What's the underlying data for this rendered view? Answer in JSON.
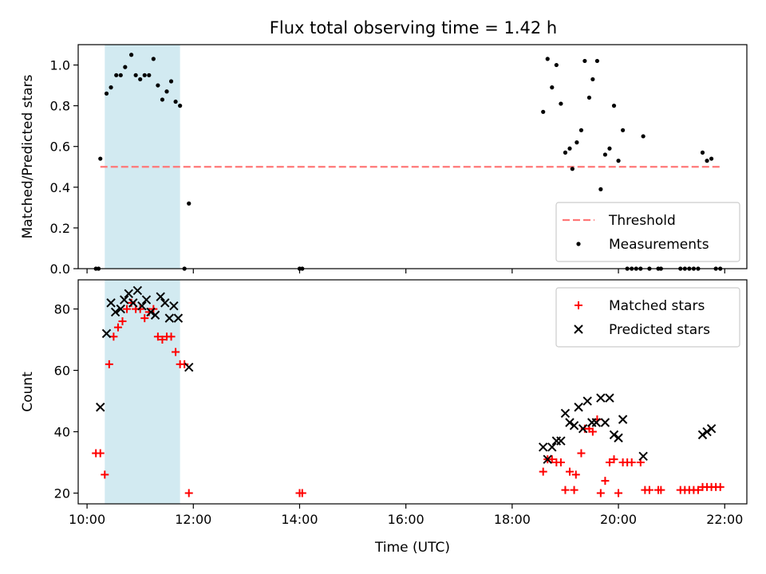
{
  "figure_title": "Flux total observing time = 1.42 h",
  "chart_data": [
    {
      "type": "scatter",
      "ylabel": "Matched/Predicted stars",
      "xlabel": "",
      "xlim": [
        "09:50",
        "22:25"
      ],
      "ylim": [
        0,
        1.1
      ],
      "yticks": [
        0.0,
        0.2,
        0.4,
        0.6,
        0.8,
        1.0
      ],
      "ytick_labels": [
        "0.0",
        "0.2",
        "0.4",
        "0.6",
        "0.8",
        "1.0"
      ],
      "shaded_interval": [
        "10:20",
        "11:45"
      ],
      "shade_color": "#add8e6",
      "threshold": {
        "name": "Threshold",
        "value": 0.5,
        "x_start": "10:15",
        "x_end": "21:55",
        "color": "#ff7777",
        "style": "dashed"
      },
      "series": [
        {
          "name": "Measurements",
          "marker": "dot",
          "color": "#000000",
          "points": [
            [
              "10:10",
              0.0
            ],
            [
              "10:13",
              0.0
            ],
            [
              "10:15",
              0.54
            ],
            [
              "10:22",
              0.86
            ],
            [
              "10:27",
              0.89
            ],
            [
              "10:33",
              0.95
            ],
            [
              "10:38",
              0.95
            ],
            [
              "10:43",
              0.99
            ],
            [
              "10:50",
              1.05
            ],
            [
              "10:55",
              0.95
            ],
            [
              "11:00",
              0.93
            ],
            [
              "11:05",
              0.95
            ],
            [
              "11:10",
              0.95
            ],
            [
              "11:15",
              1.03
            ],
            [
              "11:20",
              0.9
            ],
            [
              "11:25",
              0.83
            ],
            [
              "11:30",
              0.87
            ],
            [
              "11:35",
              0.92
            ],
            [
              "11:40",
              0.82
            ],
            [
              "11:45",
              0.8
            ],
            [
              "11:50",
              0.0
            ],
            [
              "11:55",
              0.32
            ],
            [
              "14:00",
              0.0
            ],
            [
              "14:03",
              0.0
            ],
            [
              "18:35",
              0.77
            ],
            [
              "18:40",
              1.03
            ],
            [
              "18:45",
              0.89
            ],
            [
              "18:50",
              1.0
            ],
            [
              "18:55",
              0.81
            ],
            [
              "19:00",
              0.57
            ],
            [
              "19:05",
              0.59
            ],
            [
              "19:08",
              0.49
            ],
            [
              "19:13",
              0.62
            ],
            [
              "19:18",
              0.68
            ],
            [
              "19:22",
              1.02
            ],
            [
              "19:27",
              0.84
            ],
            [
              "19:31",
              0.93
            ],
            [
              "19:36",
              1.02
            ],
            [
              "19:40",
              0.39
            ],
            [
              "19:45",
              0.56
            ],
            [
              "19:50",
              0.59
            ],
            [
              "19:55",
              0.8
            ],
            [
              "20:00",
              0.53
            ],
            [
              "20:05",
              0.68
            ],
            [
              "20:10",
              0.0
            ],
            [
              "20:15",
              0.0
            ],
            [
              "20:20",
              0.0
            ],
            [
              "20:25",
              0.0
            ],
            [
              "20:28",
              0.65
            ],
            [
              "20:35",
              0.0
            ],
            [
              "20:45",
              0.0
            ],
            [
              "20:48",
              0.0
            ],
            [
              "21:10",
              0.0
            ],
            [
              "21:15",
              0.0
            ],
            [
              "21:20",
              0.0
            ],
            [
              "21:25",
              0.0
            ],
            [
              "21:30",
              0.0
            ],
            [
              "21:35",
              0.57
            ],
            [
              "21:40",
              0.53
            ],
            [
              "21:45",
              0.54
            ],
            [
              "21:50",
              0.0
            ],
            [
              "21:55",
              0.0
            ]
          ]
        }
      ],
      "legend": {
        "placement": "lower-right",
        "entries": [
          "Threshold",
          "Measurements"
        ]
      },
      "grid": false
    },
    {
      "type": "scatter",
      "xlabel": "Time (UTC)",
      "ylabel": "Count",
      "xlim": [
        "09:50",
        "22:25"
      ],
      "ylim": [
        16.5,
        89.5
      ],
      "yticks": [
        20,
        40,
        60,
        80
      ],
      "ytick_labels": [
        "20",
        "40",
        "60",
        "80"
      ],
      "xticks": [
        "10:00",
        "12:00",
        "14:00",
        "16:00",
        "18:00",
        "20:00",
        "22:00"
      ],
      "xtick_labels": [
        "10:00",
        "12:00",
        "14:00",
        "16:00",
        "18:00",
        "20:00",
        "22:00"
      ],
      "shaded_interval": [
        "10:20",
        "11:45"
      ],
      "shade_color": "#add8e6",
      "series": [
        {
          "name": "Matched stars",
          "marker": "plus",
          "color": "#ff0000",
          "points": [
            [
              "10:10",
              33
            ],
            [
              "10:15",
              33
            ],
            [
              "10:20",
              26
            ],
            [
              "10:25",
              62
            ],
            [
              "10:30",
              71
            ],
            [
              "10:35",
              74
            ],
            [
              "10:40",
              76
            ],
            [
              "10:45",
              80
            ],
            [
              "10:50",
              82
            ],
            [
              "10:55",
              80
            ],
            [
              "11:00",
              80
            ],
            [
              "11:05",
              77
            ],
            [
              "11:10",
              79
            ],
            [
              "11:15",
              80
            ],
            [
              "11:20",
              71
            ],
            [
              "11:25",
              70
            ],
            [
              "11:30",
              71
            ],
            [
              "11:35",
              71
            ],
            [
              "11:40",
              66
            ],
            [
              "11:45",
              62
            ],
            [
              "11:50",
              62
            ],
            [
              "11:55",
              20
            ],
            [
              "14:00",
              20
            ],
            [
              "14:03",
              20
            ],
            [
              "18:35",
              27
            ],
            [
              "18:40",
              31
            ],
            [
              "18:45",
              31
            ],
            [
              "18:50",
              30
            ],
            [
              "18:55",
              30
            ],
            [
              "19:00",
              21
            ],
            [
              "19:05",
              27
            ],
            [
              "19:10",
              21
            ],
            [
              "19:12",
              26
            ],
            [
              "19:18",
              33
            ],
            [
              "19:22",
              41
            ],
            [
              "19:27",
              41
            ],
            [
              "19:31",
              40
            ],
            [
              "19:36",
              44
            ],
            [
              "19:40",
              20
            ],
            [
              "19:45",
              24
            ],
            [
              "19:50",
              30
            ],
            [
              "19:55",
              31
            ],
            [
              "20:00",
              20
            ],
            [
              "20:05",
              30
            ],
            [
              "20:10",
              30
            ],
            [
              "20:15",
              30
            ],
            [
              "20:25",
              30
            ],
            [
              "20:30",
              21
            ],
            [
              "20:35",
              21
            ],
            [
              "20:45",
              21
            ],
            [
              "20:48",
              21
            ],
            [
              "21:10",
              21
            ],
            [
              "21:15",
              21
            ],
            [
              "21:20",
              21
            ],
            [
              "21:25",
              21
            ],
            [
              "21:30",
              21
            ],
            [
              "21:35",
              22
            ],
            [
              "21:40",
              22
            ],
            [
              "21:45",
              22
            ],
            [
              "21:50",
              22
            ],
            [
              "21:55",
              22
            ]
          ]
        },
        {
          "name": "Predicted stars",
          "marker": "x",
          "color": "#000000",
          "points": [
            [
              "10:15",
              48
            ],
            [
              "10:22",
              72
            ],
            [
              "10:27",
              82
            ],
            [
              "10:32",
              79
            ],
            [
              "10:38",
              80
            ],
            [
              "10:42",
              83
            ],
            [
              "10:47",
              85
            ],
            [
              "10:52",
              82
            ],
            [
              "10:57",
              86
            ],
            [
              "11:02",
              81
            ],
            [
              "11:07",
              83
            ],
            [
              "11:12",
              79
            ],
            [
              "11:17",
              78
            ],
            [
              "11:23",
              84
            ],
            [
              "11:28",
              82
            ],
            [
              "11:33",
              77
            ],
            [
              "11:38",
              81
            ],
            [
              "11:43",
              77
            ],
            [
              "11:55",
              61
            ],
            [
              "18:35",
              35
            ],
            [
              "18:40",
              31
            ],
            [
              "18:45",
              35
            ],
            [
              "18:50",
              37
            ],
            [
              "18:55",
              37
            ],
            [
              "19:00",
              46
            ],
            [
              "19:05",
              43
            ],
            [
              "19:10",
              42
            ],
            [
              "19:15",
              48
            ],
            [
              "19:20",
              41
            ],
            [
              "19:25",
              50
            ],
            [
              "19:30",
              43
            ],
            [
              "19:35",
              43
            ],
            [
              "19:40",
              51
            ],
            [
              "19:45",
              43
            ],
            [
              "19:50",
              51
            ],
            [
              "19:55",
              39
            ],
            [
              "20:00",
              38
            ],
            [
              "20:05",
              44
            ],
            [
              "20:28",
              32
            ],
            [
              "21:35",
              39
            ],
            [
              "21:40",
              40
            ],
            [
              "21:45",
              41
            ]
          ]
        }
      ],
      "legend": {
        "placement": "top-right",
        "entries": [
          "Matched stars",
          "Predicted stars"
        ]
      },
      "grid": false
    }
  ]
}
